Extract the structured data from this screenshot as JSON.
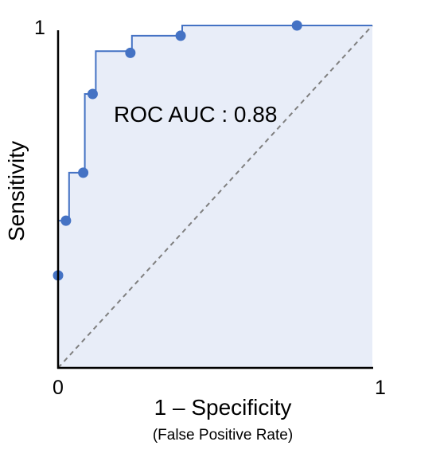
{
  "chart_data": {
    "type": "line",
    "subtype": "roc-curve",
    "xlabel": "1 – Specificity",
    "xlabel_sub": "(False Positive Rate)",
    "ylabel": "Sensitivity",
    "xlim": [
      0,
      1
    ],
    "ylim": [
      0,
      1
    ],
    "x_ticks": [
      {
        "value": 0,
        "label": "0"
      },
      {
        "value": 1,
        "label": "1"
      }
    ],
    "y_ticks": [
      {
        "value": 1,
        "label": "1"
      }
    ],
    "annotation": "ROC AUC : 0.88",
    "auc": 0.88,
    "points": [
      {
        "x": 0.0,
        "y": 0.27
      },
      {
        "x": 0.025,
        "y": 0.43
      },
      {
        "x": 0.08,
        "y": 0.57
      },
      {
        "x": 0.11,
        "y": 0.8
      },
      {
        "x": 0.23,
        "y": 0.92
      },
      {
        "x": 0.39,
        "y": 0.97
      },
      {
        "x": 0.76,
        "y": 1.0
      }
    ],
    "curve": [
      [
        0.0,
        0.0
      ],
      [
        0.0,
        0.27
      ],
      [
        0.0,
        0.43
      ],
      [
        0.035,
        0.43
      ],
      [
        0.035,
        0.57
      ],
      [
        0.085,
        0.57
      ],
      [
        0.085,
        0.8
      ],
      [
        0.12,
        0.8
      ],
      [
        0.12,
        0.925
      ],
      [
        0.235,
        0.925
      ],
      [
        0.235,
        0.97
      ],
      [
        0.395,
        0.97
      ],
      [
        0.395,
        1.0
      ],
      [
        1.0,
        1.0
      ]
    ],
    "diagonal": [
      [
        0,
        0
      ],
      [
        1,
        1
      ]
    ],
    "colors": {
      "curve": "#4472c4",
      "marker": "#4472c4",
      "fill": "#e8edf8",
      "diagonal": "#7f7f7f",
      "axis": "#000000"
    }
  }
}
